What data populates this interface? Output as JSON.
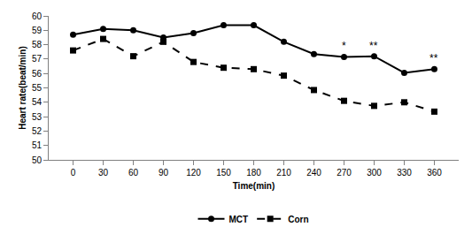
{
  "chart_data": {
    "type": "line",
    "x_label": "Time(min)",
    "y_label": "Heart rate(beat/min)",
    "categories": [
      "0",
      "30",
      "60",
      "90",
      "120",
      "150",
      "180",
      "210",
      "240",
      "270",
      "300",
      "330",
      "360"
    ],
    "series": [
      {
        "name": "MCT",
        "color": "#000000",
        "marker": "circle",
        "line_style": "solid",
        "values": [
          58.7,
          59.1,
          59.0,
          58.5,
          58.8,
          59.35,
          59.35,
          58.2,
          57.35,
          57.15,
          57.2,
          56.05,
          56.3
        ]
      },
      {
        "name": "Corn",
        "color": "#000000",
        "marker": "square",
        "line_style": "dash",
        "values": [
          57.6,
          58.4,
          57.2,
          58.2,
          56.8,
          56.4,
          56.3,
          55.85,
          54.85,
          54.1,
          53.75,
          54.0,
          53.35
        ]
      }
    ],
    "annotations": [
      {
        "x": "270",
        "text": "*"
      },
      {
        "x": "300",
        "text": "**"
      },
      {
        "x": "360",
        "text": "**"
      }
    ],
    "ylim": [
      50,
      60
    ],
    "yticks": [
      50,
      51,
      52,
      53,
      54,
      55,
      56,
      57,
      58,
      59,
      60
    ],
    "grid": false,
    "legend": "bottom"
  }
}
